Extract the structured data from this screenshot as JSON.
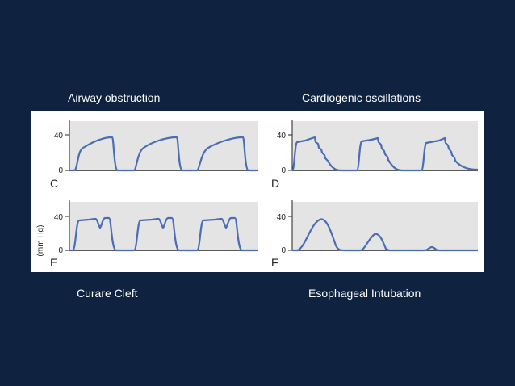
{
  "captions": {
    "top_left": "Airway obstruction",
    "top_right": "Cardiogenic oscillations",
    "bottom_left": "Curare Cleft",
    "bottom_right": "Esophageal Intubation"
  },
  "y_unit_label": "(mm Hg)",
  "colors": {
    "background": "#0f2340",
    "plot_area": "#e4e4e4",
    "trace": "#4a6db3",
    "caption_text": "#ffffff"
  },
  "plots": [
    {
      "id": "C",
      "letter": "C",
      "ticks": [
        "40",
        "0"
      ]
    },
    {
      "id": "D",
      "letter": "D",
      "ticks": [
        "40",
        "0"
      ]
    },
    {
      "id": "E",
      "letter": "E",
      "ticks": [
        "40",
        "0"
      ]
    },
    {
      "id": "F",
      "letter": "F",
      "ticks": [
        "40",
        "0"
      ]
    }
  ]
}
